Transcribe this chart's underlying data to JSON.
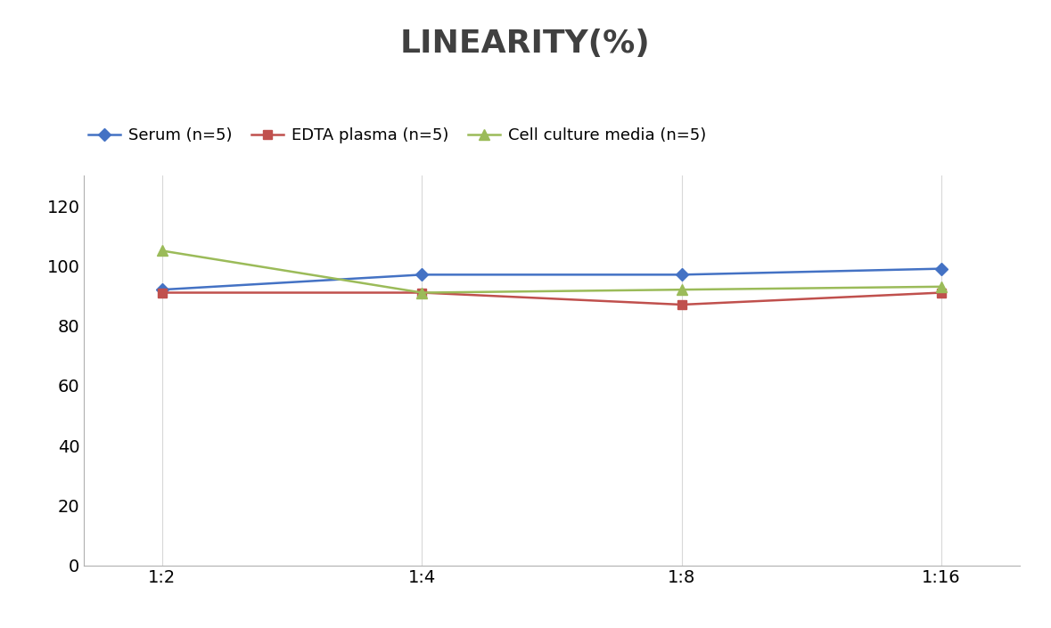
{
  "title": "LINEARITY(%)",
  "title_fontsize": 26,
  "title_fontweight": "bold",
  "title_color": "#404040",
  "x_labels": [
    "1:2",
    "1:4",
    "1:8",
    "1:16"
  ],
  "x_positions": [
    0,
    1,
    2,
    3
  ],
  "series": [
    {
      "label": "Serum (n=5)",
      "values": [
        92,
        97,
        97,
        99
      ],
      "color": "#4472C4",
      "marker": "D",
      "linewidth": 1.8,
      "markersize": 7
    },
    {
      "label": "EDTA plasma (n=5)",
      "values": [
        91,
        91,
        87,
        91
      ],
      "color": "#C0504D",
      "marker": "s",
      "linewidth": 1.8,
      "markersize": 7
    },
    {
      "label": "Cell culture media (n=5)",
      "values": [
        105,
        91,
        92,
        93
      ],
      "color": "#9BBB59",
      "marker": "^",
      "linewidth": 1.8,
      "markersize": 8
    }
  ],
  "ylim": [
    0,
    130
  ],
  "yticks": [
    0,
    20,
    40,
    60,
    80,
    100,
    120
  ],
  "ylabel": "",
  "xlabel": "",
  "background_color": "#ffffff",
  "grid_color": "#d8d8d8",
  "tick_fontsize": 14
}
